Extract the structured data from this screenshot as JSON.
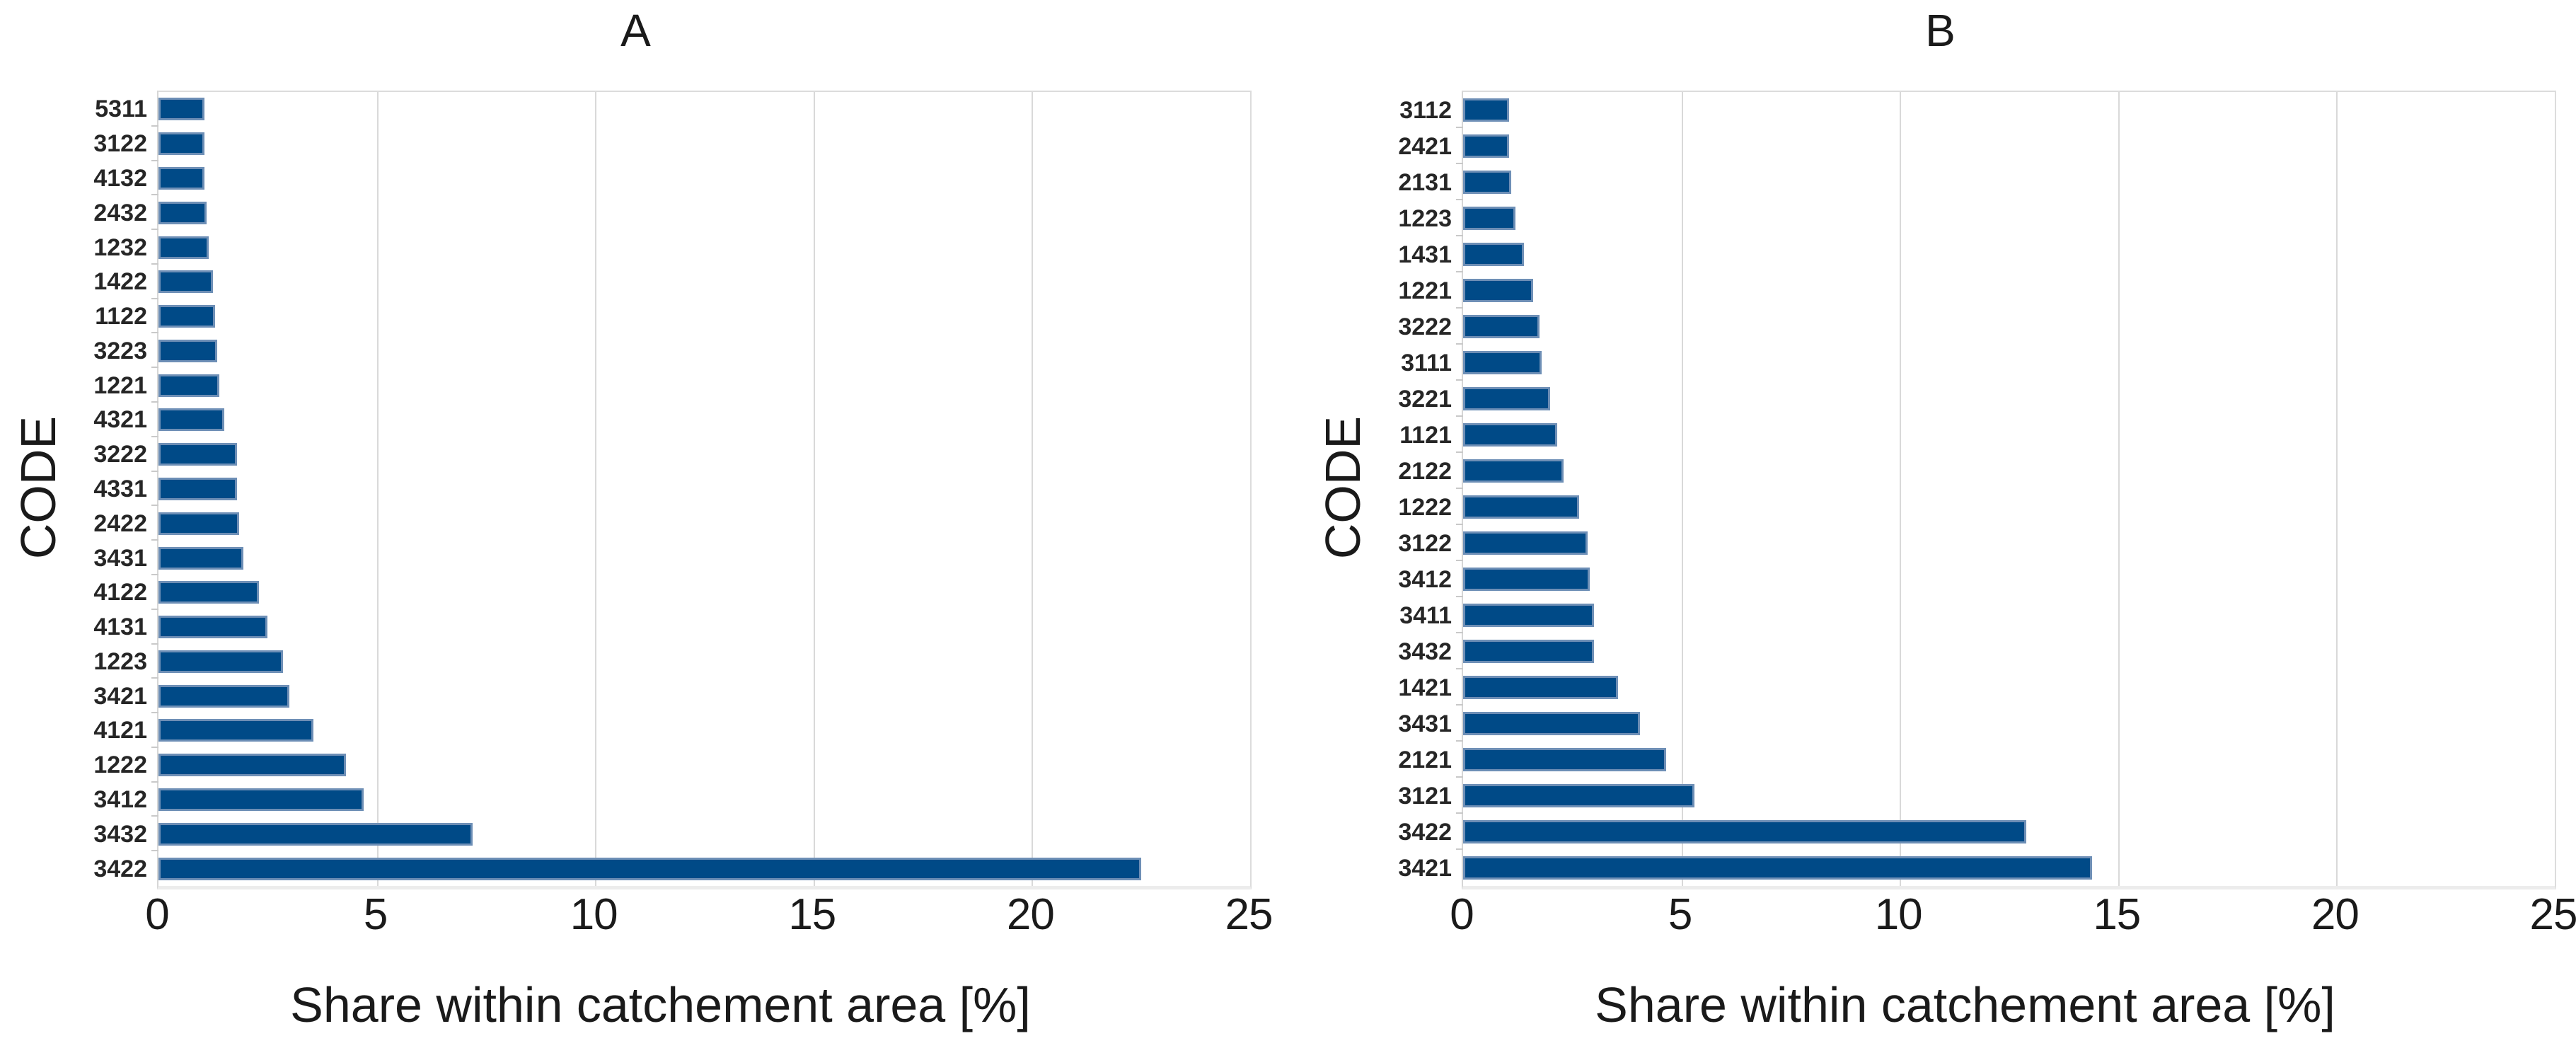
{
  "figure": {
    "background": "#ffffff",
    "colors": {
      "bar_fill": "#004a87",
      "bar_edge": "#6e8fb6",
      "grid": "#d9d9d9",
      "spine": "#dcdcdc",
      "text": "#1a1a1a"
    }
  },
  "chart_data": [
    {
      "panel": "A",
      "type": "bar",
      "orientation": "horizontal",
      "title": "A",
      "xlabel": "Share within catchement area [%]",
      "ylabel": "CODE",
      "xlim": [
        0,
        25
      ],
      "xticks": [
        0,
        5,
        10,
        15,
        20,
        25
      ],
      "grid": "vertical-major",
      "legend": "none",
      "categories_top_to_bottom": [
        "5311",
        "3122",
        "4132",
        "2432",
        "1232",
        "1422",
        "1122",
        "3223",
        "1221",
        "4321",
        "3222",
        "4331",
        "2422",
        "3431",
        "4122",
        "4131",
        "1223",
        "3421",
        "4121",
        "1222",
        "3412",
        "3432",
        "3422"
      ],
      "values": [
        1.05,
        1.05,
        1.05,
        1.1,
        1.15,
        1.25,
        1.3,
        1.35,
        1.4,
        1.5,
        1.8,
        1.8,
        1.85,
        1.95,
        2.3,
        2.5,
        2.85,
        3.0,
        3.55,
        4.3,
        4.7,
        7.2,
        22.5
      ]
    },
    {
      "panel": "B",
      "type": "bar",
      "orientation": "horizontal",
      "title": "B",
      "xlabel": "Share within catchement area [%]",
      "ylabel": "CODE",
      "xlim": [
        0,
        25
      ],
      "xticks": [
        0,
        5,
        10,
        15,
        20,
        25
      ],
      "grid": "vertical-major",
      "legend": "none",
      "categories_top_to_bottom": [
        "3112",
        "2421",
        "2131",
        "1223",
        "1431",
        "1221",
        "3222",
        "3111",
        "3221",
        "1121",
        "2122",
        "1222",
        "3122",
        "3412",
        "3411",
        "3432",
        "1421",
        "3431",
        "2121",
        "3121",
        "3422",
        "3421"
      ],
      "values": [
        1.05,
        1.05,
        1.1,
        1.2,
        1.4,
        1.6,
        1.75,
        1.8,
        2.0,
        2.15,
        2.3,
        2.65,
        2.85,
        2.9,
        3.0,
        3.0,
        3.55,
        4.05,
        4.65,
        5.3,
        12.9,
        14.4
      ]
    }
  ]
}
